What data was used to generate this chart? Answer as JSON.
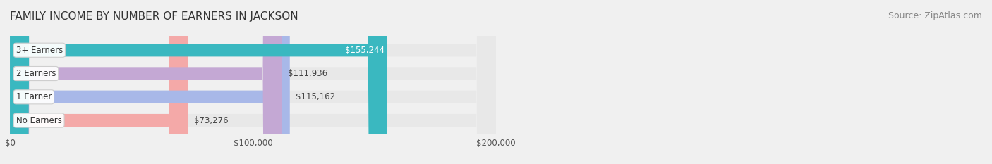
{
  "title": "FAMILY INCOME BY NUMBER OF EARNERS IN JACKSON",
  "source": "Source: ZipAtlas.com",
  "categories": [
    "No Earners",
    "1 Earner",
    "2 Earners",
    "3+ Earners"
  ],
  "values": [
    73276,
    115162,
    111936,
    155244
  ],
  "bar_colors": [
    "#f4a9a8",
    "#a8b8e8",
    "#c4a8d4",
    "#3ab8c0"
  ],
  "label_colors": [
    "#555555",
    "#555555",
    "#555555",
    "#ffffff"
  ],
  "value_labels": [
    "$73,276",
    "$115,162",
    "$111,936",
    "$155,244"
  ],
  "xmax": 200000,
  "xticks": [
    0,
    100000,
    200000
  ],
  "xtick_labels": [
    "$0",
    "$100,000",
    "$200,000"
  ],
  "background_color": "#f0f0f0",
  "bar_bg_color": "#e8e8e8",
  "title_fontsize": 11,
  "source_fontsize": 9,
  "bar_height": 0.55
}
